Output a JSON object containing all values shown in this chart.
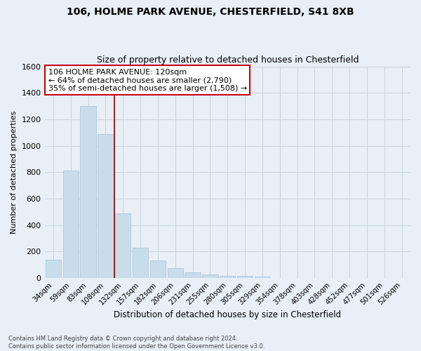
{
  "title": "106, HOLME PARK AVENUE, CHESTERFIELD, S41 8XB",
  "subtitle": "Size of property relative to detached houses in Chesterfield",
  "xlabel": "Distribution of detached houses by size in Chesterfield",
  "ylabel": "Number of detached properties",
  "footnote": "Contains HM Land Registry data © Crown copyright and database right 2024.\nContains public sector information licensed under the Open Government Licence v3.0.",
  "categories": [
    "34sqm",
    "59sqm",
    "83sqm",
    "108sqm",
    "132sqm",
    "157sqm",
    "182sqm",
    "206sqm",
    "231sqm",
    "255sqm",
    "280sqm",
    "305sqm",
    "329sqm",
    "354sqm",
    "378sqm",
    "403sqm",
    "428sqm",
    "452sqm",
    "477sqm",
    "501sqm",
    "526sqm"
  ],
  "values": [
    140,
    810,
    1300,
    1090,
    490,
    230,
    135,
    75,
    42,
    25,
    18,
    15,
    12,
    0,
    0,
    0,
    0,
    0,
    0,
    0,
    0
  ],
  "bar_color": "#c9dce9",
  "bar_edge_color": "#aac2d5",
  "ylim": [
    0,
    1600
  ],
  "yticks": [
    0,
    200,
    400,
    600,
    800,
    1000,
    1200,
    1400,
    1600
  ],
  "property_line_x": 3.5,
  "annotation_text": "106 HOLME PARK AVENUE: 120sqm\n← 64% of detached houses are smaller (2,790)\n35% of semi-detached houses are larger (1,508) →",
  "annotation_box_color": "#ffffff",
  "annotation_box_edge_color": "#cc0000",
  "property_line_color": "#8b0000",
  "grid_color": "#c8d4e0",
  "bg_color": "#e8eff6",
  "title_fontsize": 10,
  "subtitle_fontsize": 9,
  "annotation_fontsize": 8
}
